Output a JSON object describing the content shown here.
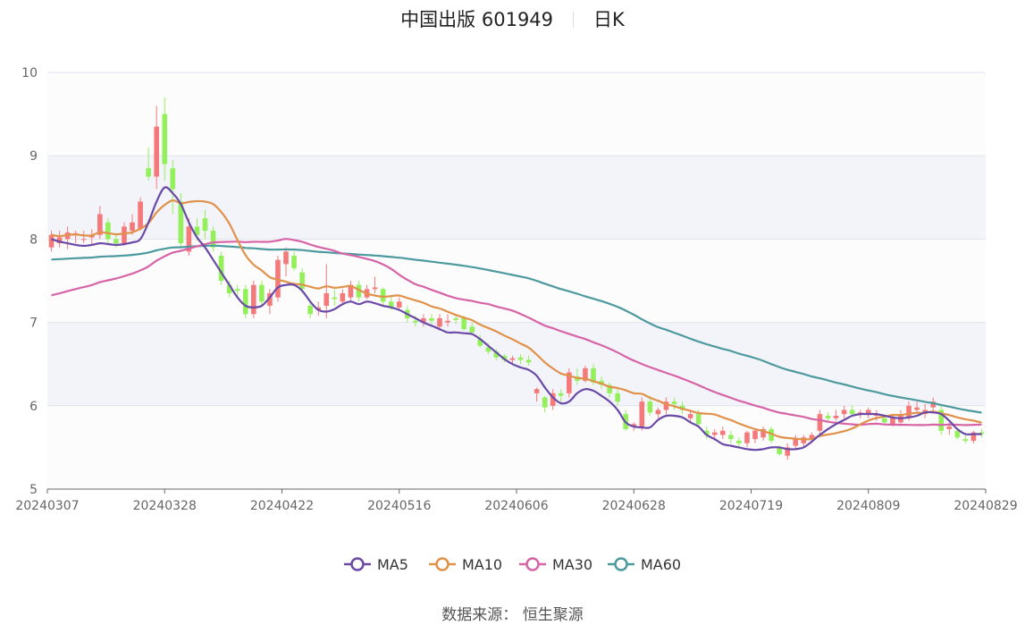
{
  "title": {
    "name": "中国出版",
    "code": "601949",
    "period": "日K"
  },
  "source": "数据来源： 恒生聚源",
  "colors": {
    "up": "#f4797a",
    "down": "#93f05b",
    "MA5": "#6a4aa6",
    "MA10": "#e0914a",
    "MA30": "#d664a6",
    "MA60": "#4c9a9e"
  },
  "chart_data": {
    "type": "candlestick",
    "ylim": [
      5,
      10
    ],
    "y_ticks": [
      "5",
      "6",
      "7",
      "8",
      "9",
      "10"
    ],
    "x_tick_labels": [
      "20240307",
      "20240328",
      "20240422",
      "20240516",
      "20240606",
      "20240628",
      "20240719",
      "20240809",
      "20240829"
    ],
    "legend": [
      {
        "name": "MA5",
        "color": "#6a4aa6"
      },
      {
        "name": "MA10",
        "color": "#e0914a"
      },
      {
        "name": "MA30",
        "color": "#d664a6"
      },
      {
        "name": "MA60",
        "color": "#4c9a9e"
      }
    ],
    "candles_ohlc": [
      [
        7.9,
        8.1,
        7.85,
        8.05
      ],
      [
        7.95,
        8.1,
        7.9,
        8.02
      ],
      [
        8.0,
        8.15,
        7.88,
        8.08
      ],
      [
        8.05,
        8.1,
        7.95,
        8.07
      ],
      [
        8.0,
        8.1,
        7.95,
        8.0
      ],
      [
        8.02,
        8.12,
        7.92,
        8.05
      ],
      [
        8.05,
        8.4,
        8.0,
        8.3
      ],
      [
        8.2,
        8.25,
        7.95,
        8.0
      ],
      [
        8.0,
        8.05,
        7.9,
        7.95
      ],
      [
        7.95,
        8.2,
        7.92,
        8.15
      ],
      [
        8.1,
        8.3,
        8.05,
        8.2
      ],
      [
        8.12,
        8.5,
        8.1,
        8.45
      ],
      [
        8.85,
        9.1,
        8.7,
        8.75
      ],
      [
        8.75,
        9.6,
        8.6,
        9.35
      ],
      [
        9.5,
        9.7,
        8.7,
        8.9
      ],
      [
        8.85,
        8.95,
        8.3,
        8.6
      ],
      [
        8.45,
        8.55,
        7.9,
        7.95
      ],
      [
        7.85,
        8.25,
        7.8,
        8.15
      ],
      [
        8.15,
        8.25,
        7.98,
        8.05
      ],
      [
        8.25,
        8.35,
        8.0,
        8.1
      ],
      [
        8.1,
        8.15,
        7.85,
        7.9
      ],
      [
        7.8,
        7.85,
        7.45,
        7.5
      ],
      [
        7.45,
        7.5,
        7.3,
        7.35
      ],
      [
        7.4,
        7.45,
        7.3,
        7.38
      ],
      [
        7.4,
        7.45,
        7.05,
        7.1
      ],
      [
        7.1,
        7.5,
        7.05,
        7.45
      ],
      [
        7.45,
        7.5,
        7.2,
        7.25
      ],
      [
        7.2,
        7.4,
        7.1,
        7.35
      ],
      [
        7.3,
        7.8,
        7.25,
        7.75
      ],
      [
        7.7,
        7.9,
        7.55,
        7.85
      ],
      [
        7.8,
        7.85,
        7.62,
        7.65
      ],
      [
        7.6,
        7.65,
        7.35,
        7.4
      ],
      [
        7.2,
        7.25,
        7.05,
        7.1
      ],
      [
        7.15,
        7.25,
        7.08,
        7.18
      ],
      [
        7.2,
        7.7,
        7.05,
        7.35
      ],
      [
        7.3,
        7.4,
        7.2,
        7.28
      ],
      [
        7.25,
        7.4,
        7.2,
        7.35
      ],
      [
        7.3,
        7.5,
        7.25,
        7.45
      ],
      [
        7.45,
        7.5,
        7.25,
        7.3
      ],
      [
        7.3,
        7.45,
        7.28,
        7.4
      ],
      [
        7.4,
        7.55,
        7.35,
        7.42
      ],
      [
        7.4,
        7.42,
        7.2,
        7.25
      ],
      [
        7.25,
        7.3,
        7.15,
        7.18
      ],
      [
        7.18,
        7.3,
        7.15,
        7.25
      ],
      [
        7.15,
        7.2,
        7.0,
        7.05
      ],
      [
        7.02,
        7.08,
        6.95,
        7.0
      ],
      [
        7.0,
        7.1,
        6.95,
        7.05
      ],
      [
        7.05,
        7.1,
        6.98,
        7.02
      ],
      [
        6.95,
        7.1,
        6.9,
        7.05
      ],
      [
        7.0,
        7.1,
        6.95,
        7.02
      ],
      [
        7.05,
        7.08,
        6.98,
        7.03
      ],
      [
        7.05,
        7.08,
        6.9,
        6.92
      ],
      [
        6.95,
        7.0,
        6.85,
        6.88
      ],
      [
        6.8,
        6.85,
        6.7,
        6.72
      ],
      [
        6.7,
        6.75,
        6.62,
        6.65
      ],
      [
        6.65,
        6.68,
        6.55,
        6.58
      ],
      [
        6.6,
        6.62,
        6.52,
        6.55
      ],
      [
        6.55,
        6.6,
        6.5,
        6.57
      ],
      [
        6.58,
        6.62,
        6.5,
        6.55
      ],
      [
        6.55,
        6.6,
        6.48,
        6.52
      ],
      [
        6.15,
        6.22,
        6.05,
        6.2
      ],
      [
        6.1,
        6.12,
        5.92,
        5.98
      ],
      [
        6.0,
        6.2,
        5.95,
        6.15
      ],
      [
        6.15,
        6.2,
        6.05,
        6.12
      ],
      [
        6.15,
        6.45,
        6.1,
        6.4
      ],
      [
        6.35,
        6.45,
        6.25,
        6.3
      ],
      [
        6.3,
        6.48,
        6.28,
        6.45
      ],
      [
        6.45,
        6.5,
        6.25,
        6.28
      ],
      [
        6.3,
        6.35,
        6.2,
        6.25
      ],
      [
        6.25,
        6.28,
        6.1,
        6.15
      ],
      [
        6.15,
        6.2,
        6.0,
        6.05
      ],
      [
        5.9,
        5.95,
        5.7,
        5.72
      ],
      [
        5.75,
        5.8,
        5.7,
        5.78
      ],
      [
        5.75,
        6.1,
        5.7,
        6.05
      ],
      [
        6.05,
        6.12,
        5.88,
        5.92
      ],
      [
        5.9,
        5.98,
        5.85,
        5.95
      ],
      [
        5.95,
        6.1,
        5.9,
        6.05
      ],
      [
        6.05,
        6.1,
        5.95,
        6.02
      ],
      [
        6.0,
        6.05,
        5.9,
        5.95
      ],
      [
        5.85,
        5.95,
        5.8,
        5.9
      ],
      [
        5.9,
        5.95,
        5.75,
        5.78
      ],
      [
        5.7,
        5.75,
        5.6,
        5.65
      ],
      [
        5.65,
        5.72,
        5.58,
        5.68
      ],
      [
        5.65,
        5.75,
        5.6,
        5.7
      ],
      [
        5.65,
        5.7,
        5.55,
        5.6
      ],
      [
        5.58,
        5.62,
        5.5,
        5.55
      ],
      [
        5.55,
        5.7,
        5.5,
        5.68
      ],
      [
        5.6,
        5.72,
        5.55,
        5.7
      ],
      [
        5.62,
        5.75,
        5.58,
        5.72
      ],
      [
        5.72,
        5.75,
        5.55,
        5.58
      ],
      [
        5.5,
        5.52,
        5.4,
        5.42
      ],
      [
        5.4,
        5.55,
        5.35,
        5.5
      ],
      [
        5.52,
        5.65,
        5.48,
        5.6
      ],
      [
        5.55,
        5.65,
        5.5,
        5.62
      ],
      [
        5.6,
        5.68,
        5.55,
        5.65
      ],
      [
        5.7,
        5.95,
        5.65,
        5.9
      ],
      [
        5.88,
        5.92,
        5.8,
        5.85
      ],
      [
        5.85,
        5.95,
        5.82,
        5.88
      ],
      [
        5.9,
        6.0,
        5.85,
        5.95
      ],
      [
        5.95,
        6.0,
        5.88,
        5.9
      ],
      [
        5.9,
        5.95,
        5.85,
        5.92
      ],
      [
        5.9,
        5.98,
        5.85,
        5.95
      ],
      [
        5.88,
        5.95,
        5.82,
        5.9
      ],
      [
        5.85,
        5.9,
        5.78,
        5.8
      ],
      [
        5.78,
        5.9,
        5.75,
        5.85
      ],
      [
        5.8,
        5.95,
        5.78,
        5.9
      ],
      [
        5.85,
        6.05,
        5.82,
        6.0
      ],
      [
        5.95,
        6.05,
        5.9,
        5.98
      ],
      [
        5.9,
        6.02,
        5.85,
        5.95
      ],
      [
        5.98,
        6.1,
        5.92,
        6.05
      ],
      [
        5.95,
        6.0,
        5.65,
        5.7
      ],
      [
        5.72,
        5.8,
        5.65,
        5.75
      ],
      [
        5.7,
        5.72,
        5.6,
        5.62
      ],
      [
        5.6,
        5.65,
        5.55,
        5.58
      ],
      [
        5.58,
        5.7,
        5.55,
        5.68
      ],
      [
        5.68,
        5.72,
        5.62,
        5.66
      ]
    ],
    "ma5": [
      8.0,
      7.97,
      7.95,
      7.93,
      7.92,
      7.93,
      7.95,
      7.94,
      7.93,
      7.94,
      7.96,
      8.0,
      8.2,
      8.45,
      8.62,
      8.55,
      8.42,
      8.2,
      8.02,
      7.9,
      7.75,
      7.6,
      7.45,
      7.3,
      7.2,
      7.18,
      7.2,
      7.3,
      7.42,
      7.45,
      7.45,
      7.38,
      7.25,
      7.15,
      7.13,
      7.16,
      7.22,
      7.25,
      7.22,
      7.25,
      7.23,
      7.2,
      7.18,
      7.15,
      7.1,
      7.05,
      7.0,
      6.96,
      6.92,
      6.88,
      6.88,
      6.87,
      6.86,
      6.8,
      6.72,
      6.64,
      6.56,
      6.5,
      6.46,
      6.43,
      6.36,
      6.22,
      6.1,
      6.03,
      6.05,
      6.15,
      6.2,
      6.18,
      6.12,
      6.05,
      5.95,
      5.8,
      5.75,
      5.74,
      5.74,
      5.83,
      5.88,
      5.88,
      5.86,
      5.8,
      5.75,
      5.65,
      5.6,
      5.54,
      5.52,
      5.5,
      5.48,
      5.47,
      5.48,
      5.5,
      5.5,
      5.48,
      5.48,
      5.5,
      5.57,
      5.65,
      5.72,
      5.78,
      5.83,
      5.88,
      5.9,
      5.9,
      5.9,
      5.88,
      5.86,
      5.85,
      5.86,
      5.88,
      5.92,
      5.92,
      5.9,
      5.82,
      5.72,
      5.66,
      5.66,
      5.66
    ]
  }
}
